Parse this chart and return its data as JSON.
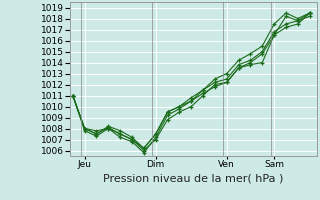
{
  "title": "",
  "xlabel": "Pression niveau de la mer( hPa )",
  "ylabel": "",
  "bg_color": "#ceeae6",
  "grid_color": "#ffffff",
  "line_color": "#1a6b1a",
  "ylim": [
    1005.5,
    1019.5
  ],
  "yticks": [
    1006,
    1007,
    1008,
    1009,
    1010,
    1011,
    1012,
    1013,
    1014,
    1015,
    1016,
    1017,
    1018,
    1019
  ],
  "day_labels": [
    "Jeu",
    "Dim",
    "Ven",
    "Sam"
  ],
  "day_positions": [
    0.5,
    3.5,
    6.5,
    8.5
  ],
  "series1": [
    [
      0.0,
      1011.0
    ],
    [
      0.5,
      1008.0
    ],
    [
      1.0,
      1007.8
    ],
    [
      1.5,
      1008.0
    ],
    [
      2.0,
      1007.2
    ],
    [
      2.5,
      1006.8
    ],
    [
      3.0,
      1005.8
    ],
    [
      3.5,
      1007.2
    ],
    [
      4.0,
      1009.2
    ],
    [
      4.5,
      1009.8
    ],
    [
      5.0,
      1010.5
    ],
    [
      5.5,
      1011.2
    ],
    [
      6.0,
      1011.8
    ],
    [
      6.5,
      1012.2
    ],
    [
      7.0,
      1013.5
    ],
    [
      7.5,
      1013.8
    ],
    [
      8.0,
      1014.0
    ],
    [
      8.5,
      1016.5
    ],
    [
      9.0,
      1018.2
    ],
    [
      9.5,
      1017.8
    ],
    [
      10.0,
      1018.5
    ]
  ],
  "series2": [
    [
      0.0,
      1011.0
    ],
    [
      0.5,
      1008.0
    ],
    [
      1.0,
      1007.5
    ],
    [
      1.5,
      1008.1
    ],
    [
      2.0,
      1007.5
    ],
    [
      2.5,
      1007.0
    ],
    [
      3.0,
      1006.2
    ],
    [
      3.5,
      1007.5
    ],
    [
      4.0,
      1009.5
    ],
    [
      4.5,
      1010.0
    ],
    [
      5.0,
      1010.8
    ],
    [
      5.5,
      1011.5
    ],
    [
      6.0,
      1012.2
    ],
    [
      6.5,
      1012.5
    ],
    [
      7.0,
      1013.8
    ],
    [
      7.5,
      1014.2
    ],
    [
      8.0,
      1015.0
    ],
    [
      8.5,
      1016.8
    ],
    [
      9.0,
      1017.5
    ],
    [
      9.5,
      1017.8
    ],
    [
      10.0,
      1018.2
    ]
  ],
  "series3": [
    [
      0.0,
      1011.0
    ],
    [
      0.5,
      1007.8
    ],
    [
      1.0,
      1007.3
    ],
    [
      1.5,
      1008.0
    ],
    [
      2.0,
      1007.5
    ],
    [
      2.5,
      1007.0
    ],
    [
      3.0,
      1006.0
    ],
    [
      3.5,
      1007.0
    ],
    [
      4.0,
      1008.8
    ],
    [
      4.5,
      1009.5
    ],
    [
      5.0,
      1010.0
    ],
    [
      5.5,
      1011.0
    ],
    [
      6.0,
      1012.0
    ],
    [
      6.5,
      1012.2
    ],
    [
      7.0,
      1013.5
    ],
    [
      7.5,
      1014.0
    ],
    [
      8.0,
      1014.8
    ],
    [
      8.5,
      1016.5
    ],
    [
      9.0,
      1017.2
    ],
    [
      9.5,
      1017.5
    ],
    [
      10.0,
      1018.5
    ]
  ],
  "series4": [
    [
      0.0,
      1011.0
    ],
    [
      0.5,
      1008.0
    ],
    [
      1.0,
      1007.5
    ],
    [
      1.5,
      1008.2
    ],
    [
      2.0,
      1007.8
    ],
    [
      2.5,
      1007.2
    ],
    [
      3.0,
      1006.2
    ],
    [
      3.5,
      1007.5
    ],
    [
      4.0,
      1009.5
    ],
    [
      4.5,
      1010.0
    ],
    [
      5.0,
      1010.5
    ],
    [
      5.5,
      1011.5
    ],
    [
      6.0,
      1012.5
    ],
    [
      6.5,
      1013.0
    ],
    [
      7.0,
      1014.2
    ],
    [
      7.5,
      1014.8
    ],
    [
      8.0,
      1015.5
    ],
    [
      8.5,
      1017.5
    ],
    [
      9.0,
      1018.5
    ],
    [
      9.5,
      1018.0
    ],
    [
      10.0,
      1018.5
    ]
  ],
  "xlim": [
    -0.1,
    10.3
  ],
  "vline_positions": [
    0.35,
    3.35,
    6.35,
    8.35
  ],
  "xlabel_fontsize": 8,
  "tick_fontsize": 6.5
}
